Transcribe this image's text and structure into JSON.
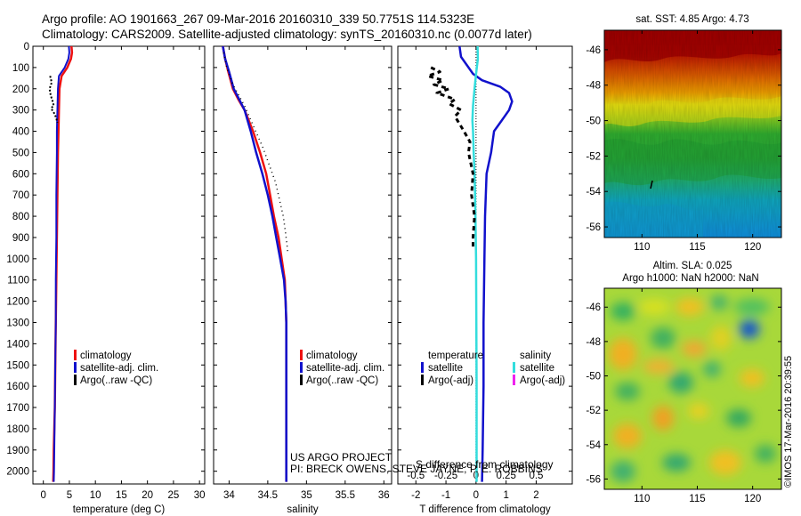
{
  "header": {
    "line1": "Argo profile: AO 1901663_267 09-Mar-2016 20160310_339 50.7751S 114.5323E",
    "line2": "Climatology: CARS2009. Satellite-adjusted climatology: synTS_20160310.nc (0.0077d later)"
  },
  "colors": {
    "climatology": "#ee1111",
    "satellite": "#1111cc",
    "argo": "#000000",
    "salinity_satellite": "#33dddd",
    "salinity_argo": "#ee22ee"
  },
  "stamp": "©IMOS 17-Mar-2016 20:39:55",
  "attribution": {
    "line1": "US ARGO PROJECT",
    "line2": "PI: BRECK OWENS, STEVE JAYNE, P. E. ROBBINS"
  },
  "chart_data": [
    {
      "type": "line",
      "xlabel": "temperature (deg C)",
      "ylabel": "",
      "xlim": [
        -2,
        31
      ],
      "ylim": [
        2060,
        0
      ],
      "xticks": [
        0,
        5,
        10,
        15,
        20,
        25,
        30
      ],
      "yticks": [
        0,
        100,
        200,
        300,
        400,
        500,
        600,
        700,
        800,
        900,
        1000,
        1100,
        1200,
        1300,
        1400,
        1500,
        1600,
        1700,
        1800,
        1900,
        2000
      ],
      "legend": [
        "climatology",
        "satellite-adj. clim.",
        "Argo(..raw -QC)"
      ],
      "series": [
        {
          "name": "climatology",
          "x": [
            5.4,
            5.5,
            5.3,
            4.6,
            3.5,
            3.1,
            3.0,
            2.9,
            2.8,
            2.7,
            2.6,
            2.5,
            2.4,
            2.3,
            2.2,
            2.1,
            2.0,
            1.95,
            1.9
          ],
          "y": [
            0,
            30,
            60,
            100,
            140,
            200,
            300,
            400,
            500,
            700,
            900,
            1100,
            1300,
            1500,
            1700,
            1800,
            1900,
            2000,
            2050
          ]
        },
        {
          "name": "satellite-adj. clim.",
          "x": [
            4.9,
            5.0,
            4.8,
            4.1,
            3.0,
            2.8,
            2.7,
            2.6,
            2.6,
            2.5,
            2.5,
            2.4,
            2.4,
            2.3,
            2.2,
            2.1,
            2.05,
            2.0
          ],
          "y": [
            0,
            30,
            60,
            100,
            140,
            200,
            300,
            400,
            500,
            700,
            900,
            1100,
            1300,
            1500,
            1700,
            1900,
            2000,
            2050
          ]
        },
        {
          "name": "Argo(..raw -QC)",
          "x": [
            1.3,
            1.6,
            1.2,
            1.4,
            1.8,
            2.0,
            1.5,
            1.7,
            2.2,
            2.5,
            2.7
          ],
          "y": [
            140,
            170,
            200,
            230,
            260,
            280,
            290,
            300,
            320,
            340,
            360
          ]
        }
      ]
    },
    {
      "type": "line",
      "xlabel": "salinity",
      "ylabel": "",
      "xlim": [
        33.8,
        36.1
      ],
      "ylim": [
        2060,
        0
      ],
      "xticks": [
        34,
        34.5,
        35,
        35.5,
        36
      ],
      "legend": [
        "climatology",
        "satellite-adj. clim.",
        "Argo(..raw -QC)"
      ],
      "series": [
        {
          "name": "climatology",
          "x": [
            33.92,
            33.95,
            33.99,
            34.05,
            34.12,
            34.2,
            34.31,
            34.4,
            34.48,
            34.53,
            34.58,
            34.64,
            34.68,
            34.72,
            34.73,
            34.74,
            34.74,
            34.74,
            34.74
          ],
          "y": [
            0,
            60,
            120,
            200,
            250,
            300,
            400,
            500,
            600,
            700,
            800,
            900,
            1000,
            1100,
            1200,
            1300,
            1500,
            1800,
            2050
          ]
        },
        {
          "name": "satellite-adj. clim.",
          "x": [
            33.92,
            33.95,
            34.0,
            34.06,
            34.13,
            34.2,
            34.28,
            34.35,
            34.43,
            34.5,
            34.56,
            34.61,
            34.66,
            34.71,
            34.73,
            34.74,
            34.74,
            34.74,
            34.74
          ],
          "y": [
            0,
            60,
            120,
            200,
            250,
            300,
            400,
            500,
            600,
            700,
            800,
            900,
            1000,
            1100,
            1200,
            1300,
            1500,
            1800,
            2050
          ]
        },
        {
          "name": "Argo(..raw -QC)",
          "x": [
            33.93,
            33.97,
            34.05,
            34.2,
            34.32,
            34.44,
            34.52,
            34.6,
            34.65,
            34.7,
            34.73,
            34.75,
            34.76
          ],
          "y": [
            30,
            100,
            180,
            280,
            380,
            480,
            560,
            640,
            720,
            800,
            880,
            940,
            980
          ]
        }
      ]
    },
    {
      "type": "line",
      "xlabel": "T difference from climatology",
      "x2label": "S difference from climatology",
      "ylabel": "",
      "xlim": [
        -2.6,
        3.2
      ],
      "ylim": [
        2060,
        0
      ],
      "xticks": [
        -2,
        -1,
        0,
        1,
        2
      ],
      "x2lim": [
        -0.65,
        0.8
      ],
      "x2ticks": [
        -0.5,
        -0.25,
        0,
        0.25,
        0.5
      ],
      "x2ticklabels": [
        "-0.5",
        "-0.25",
        "0",
        "0.25",
        "0.5"
      ],
      "legend_title_temperature": "temperature",
      "legend_title_salinity": "salinity",
      "legend_temperature": [
        "satellite",
        "Argo(-adj)"
      ],
      "legend_salinity": [
        "satellite",
        "Argo(-adj)"
      ],
      "series": [
        {
          "name": "temperature satellite",
          "x": [
            -0.55,
            -0.5,
            -0.1,
            0.2,
            0.8,
            1.1,
            1.2,
            1.1,
            0.95,
            0.8,
            0.6,
            0.5,
            0.35,
            0.3,
            0.28,
            0.25,
            0.25,
            0.22,
            0.2
          ],
          "y": [
            0,
            50,
            130,
            160,
            190,
            220,
            260,
            300,
            330,
            360,
            400,
            500,
            600,
            800,
            1000,
            1300,
            1600,
            1900,
            2050
          ]
        },
        {
          "name": "salinity satellite",
          "x": [
            0.05,
            0.06,
            0.0,
            -0.05,
            -0.1,
            -0.12,
            -0.1,
            -0.08,
            -0.05,
            -0.03,
            -0.02,
            0.0,
            0.01,
            0.02,
            0.02,
            0.02
          ],
          "y": [
            0,
            60,
            130,
            200,
            280,
            350,
            400,
            500,
            600,
            700,
            800,
            1000,
            1300,
            1600,
            1900,
            2050
          ]
        },
        {
          "name": "temperature Argo",
          "x": [
            -1.5,
            -1.2,
            -1.6,
            -1.1,
            -1.4,
            -0.9,
            -1.3,
            -0.7,
            -0.9,
            -0.5,
            -0.7,
            -0.4,
            -0.2,
            -0.25,
            -0.1,
            -0.15,
            -0.05,
            -0.1,
            -0.1
          ],
          "y": [
            100,
            120,
            140,
            160,
            180,
            200,
            220,
            250,
            270,
            300,
            330,
            400,
            450,
            500,
            600,
            700,
            800,
            900,
            950
          ]
        }
      ]
    },
    {
      "type": "heatmap",
      "title": "sat. SST: 4.85 Argo: 4.73",
      "xlim": [
        106.6,
        122.6
      ],
      "ylim": [
        -56.6,
        -44.9
      ],
      "xticks": [
        110,
        115,
        120
      ],
      "yticks": [
        -46,
        -48,
        -50,
        -52,
        -54,
        -56
      ],
      "xticklabels": [
        "110",
        "115",
        "120"
      ],
      "yticklabels": [
        "-46",
        "-48",
        "-50",
        "-52",
        "-54",
        "-56"
      ]
    },
    {
      "type": "heatmap",
      "title": "Altim. SLA: 0.025",
      "subtitle": "Argo h1000: NaN h2000: NaN",
      "xlim": [
        106.6,
        122.6
      ],
      "ylim": [
        -56.6,
        -44.9
      ],
      "xticks": [
        110,
        115,
        120
      ],
      "yticks": [
        -46,
        -48,
        -50,
        -52,
        -54,
        -56
      ],
      "xticklabels": [
        "110",
        "115",
        "120"
      ],
      "yticklabels": [
        "-46",
        "-48",
        "-50",
        "-52",
        "-54",
        "-56"
      ]
    }
  ]
}
